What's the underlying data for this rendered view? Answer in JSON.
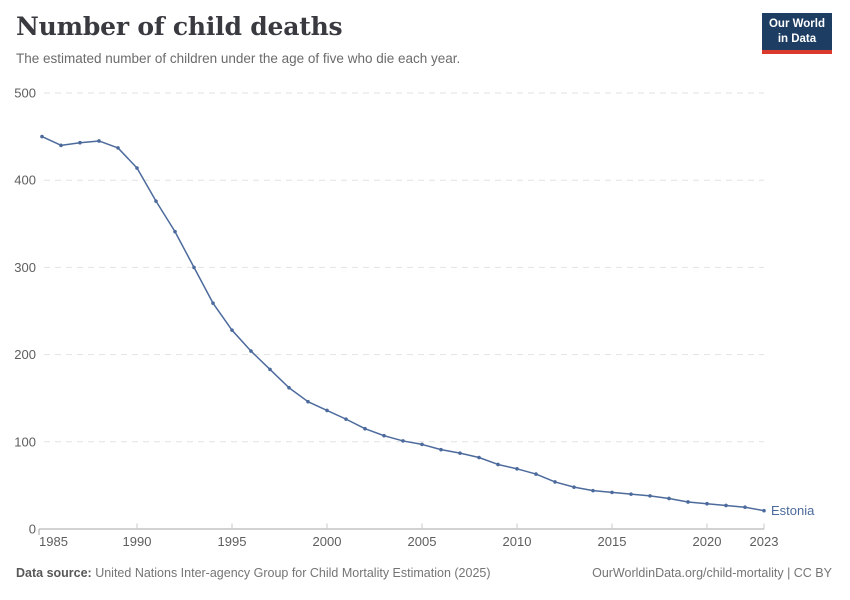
{
  "header": {
    "title": "Number of child deaths",
    "subtitle": "The estimated number of children under the age of five who die each year.",
    "logo": {
      "line1": "Our World",
      "line2": "in Data"
    }
  },
  "chart_data": {
    "type": "line",
    "title": "Number of child deaths",
    "xlabel": "",
    "ylabel": "",
    "xlim": [
      1985,
      2023
    ],
    "ylim": [
      0,
      500
    ],
    "x_ticks": [
      1985,
      1990,
      1995,
      2000,
      2005,
      2010,
      2015,
      2020,
      2023
    ],
    "y_ticks": [
      0,
      100,
      200,
      300,
      400,
      500
    ],
    "grid": "horizontal-dashed",
    "legend_position": "end-of-line-label",
    "series": [
      {
        "name": "Estonia",
        "color": "#4c6a9c",
        "x": [
          1985,
          1986,
          1987,
          1988,
          1989,
          1990,
          1991,
          1992,
          1993,
          1994,
          1995,
          1996,
          1997,
          1998,
          1999,
          2000,
          2001,
          2002,
          2003,
          2004,
          2005,
          2006,
          2007,
          2008,
          2009,
          2010,
          2011,
          2012,
          2013,
          2014,
          2015,
          2016,
          2017,
          2018,
          2019,
          2020,
          2021,
          2022,
          2023
        ],
        "values": [
          450,
          440,
          443,
          445,
          437,
          414,
          376,
          341,
          300,
          259,
          228,
          204,
          183,
          162,
          146,
          136,
          126,
          115,
          107,
          101,
          97,
          91,
          87,
          82,
          74,
          69,
          63,
          54,
          48,
          44,
          42,
          40,
          38,
          35,
          31,
          29,
          27,
          25,
          21
        ]
      }
    ]
  },
  "footer": {
    "source_label": "Data source:",
    "source_text": " United Nations Inter-agency Group for Child Mortality Estimation (2025)",
    "right_text": "OurWorldinData.org/child-mortality | CC BY"
  },
  "colors": {
    "line": "#4c6a9c",
    "grid": "#e2e2e2",
    "axis": "#a6a6a6",
    "tick": "#c9c9c9",
    "tick_label": "#5e5e5e",
    "logo_bg": "#1d3d63",
    "logo_bar": "#d93a2d"
  }
}
